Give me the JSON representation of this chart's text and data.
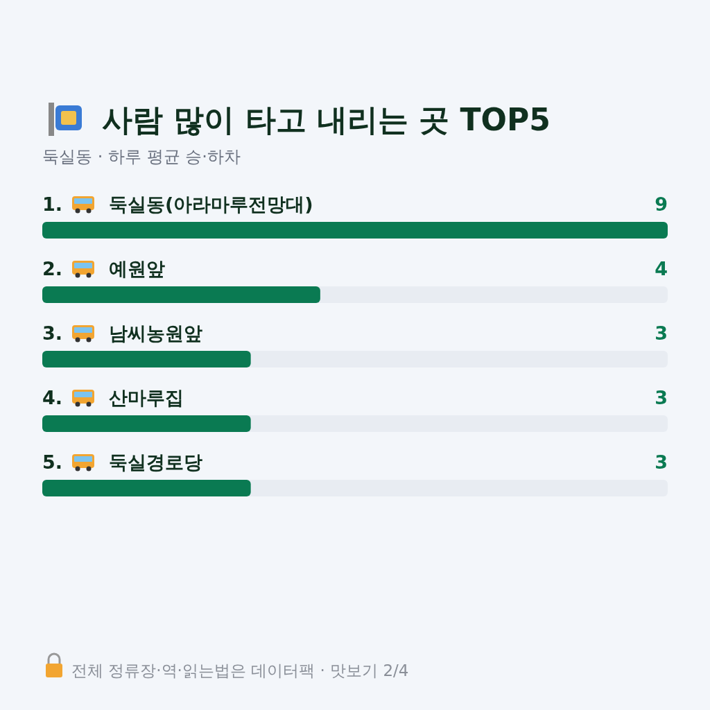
{
  "chart_data": {
    "type": "bar",
    "orientation": "horizontal",
    "title": "사람 많이 타고 내리는 곳 TOP5",
    "subtitle": "둑실동 · 하루 평균 승·하차",
    "categories": [
      "1. 둑실동(아라마루전망대)",
      "2. 예원앞",
      "3. 남씨농원앞",
      "4. 산마루집",
      "5. 둑실경로당"
    ],
    "values": [
      9,
      4,
      3,
      3,
      3
    ],
    "color": "#0a7a52",
    "xlim": [
      0,
      9
    ],
    "data_labels": true,
    "annotations": [
      "전체 정류장·역·읽는법은 데이터팩 · 맛보기 2/4"
    ]
  }
}
